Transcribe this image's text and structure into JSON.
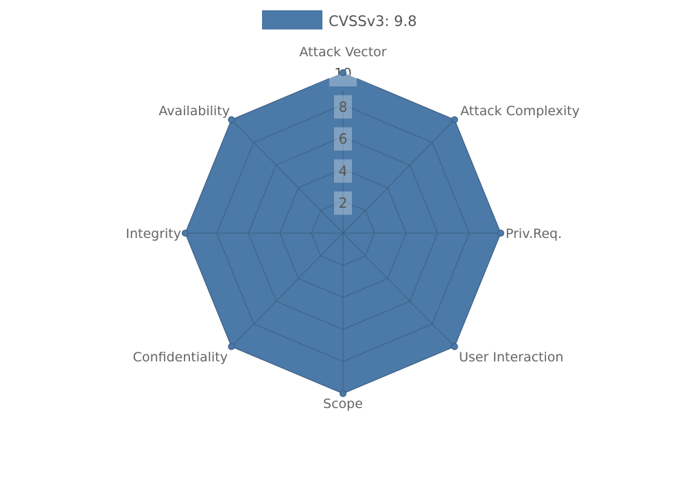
{
  "chart_data": {
    "type": "radar",
    "legend": {
      "label": "CVSSv3: 9.8",
      "position": "top-center",
      "swatch_color": "#4b79a8"
    },
    "categories": [
      "Attack Vector",
      "Attack Complexity",
      "Priv.Req.",
      "User Interaction",
      "Scope",
      "Confidentiality",
      "Integrity",
      "Availability"
    ],
    "series": [
      {
        "name": "CVSSv3: 9.8",
        "color": "#4b79a8",
        "values": [
          10,
          10,
          10,
          10,
          10,
          10,
          10,
          10
        ]
      }
    ],
    "ticks": [
      2,
      4,
      6,
      8,
      10
    ],
    "rlim": [
      0,
      10
    ],
    "grid": true,
    "theme": {
      "background": "#ffffff",
      "grid_color": "#3e5f80",
      "series_fill": "#4b79a8",
      "axis_label_color": "#666666",
      "tick_text_color": "#555555",
      "tick_box_color": "rgba(255,255,255,0.3)"
    }
  }
}
